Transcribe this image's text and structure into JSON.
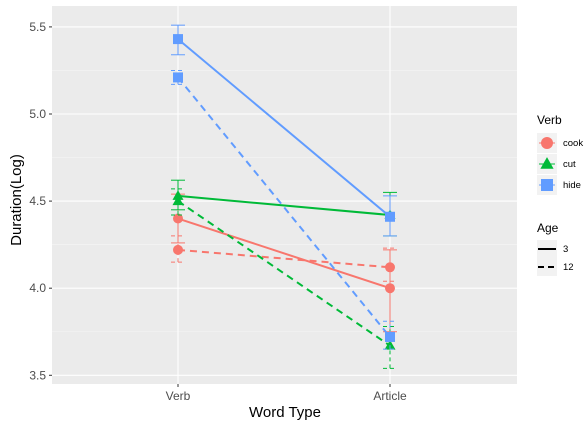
{
  "chart_data": {
    "type": "line",
    "xlabel": "Word Type",
    "ylabel": "Duration(Log)",
    "categories": [
      "Verb",
      "Article"
    ],
    "ylim": [
      3.45,
      5.62
    ],
    "yticks": [
      "3.5",
      "4.0",
      "4.5",
      "5.0",
      "5.5"
    ],
    "ytick_values": [
      3.5,
      4.0,
      4.5,
      5.0,
      5.5
    ],
    "grid": true,
    "legend_position": "right",
    "legend": {
      "verb": {
        "title": "Verb",
        "items": [
          {
            "label": "cook",
            "shape": "circle",
            "color": "#F8766D"
          },
          {
            "label": "cut",
            "shape": "triangle",
            "color": "#00BA38"
          },
          {
            "label": "hide",
            "shape": "square",
            "color": "#619CFF"
          }
        ]
      },
      "age": {
        "title": "Age",
        "items": [
          {
            "label": "3",
            "linetype": "solid"
          },
          {
            "label": "12",
            "linetype": "dashed"
          }
        ]
      }
    },
    "series": [
      {
        "verb": "cook",
        "age": "3",
        "values": [
          4.4,
          4.0
        ],
        "ci": [
          [
            4.26,
            4.54
          ],
          [
            3.75,
            4.22
          ]
        ]
      },
      {
        "verb": "cook",
        "age": "12",
        "values": [
          4.22,
          4.12
        ],
        "ci": [
          [
            4.15,
            4.3
          ],
          [
            4.04,
            4.23
          ]
        ]
      },
      {
        "verb": "cut",
        "age": "3",
        "values": [
          4.53,
          4.42
        ],
        "ci": [
          [
            4.45,
            4.62
          ],
          [
            4.3,
            4.55
          ]
        ]
      },
      {
        "verb": "cut",
        "age": "12",
        "values": [
          4.5,
          3.67
        ],
        "ci": [
          [
            4.42,
            4.57
          ],
          [
            3.54,
            3.78
          ]
        ]
      },
      {
        "verb": "hide",
        "age": "3",
        "values": [
          5.43,
          4.41
        ],
        "ci": [
          [
            5.34,
            5.51
          ],
          [
            4.3,
            4.53
          ]
        ]
      },
      {
        "verb": "hide",
        "age": "12",
        "values": [
          5.21,
          3.72
        ],
        "ci": [
          [
            5.17,
            5.25
          ],
          [
            3.65,
            3.81
          ]
        ]
      }
    ]
  }
}
